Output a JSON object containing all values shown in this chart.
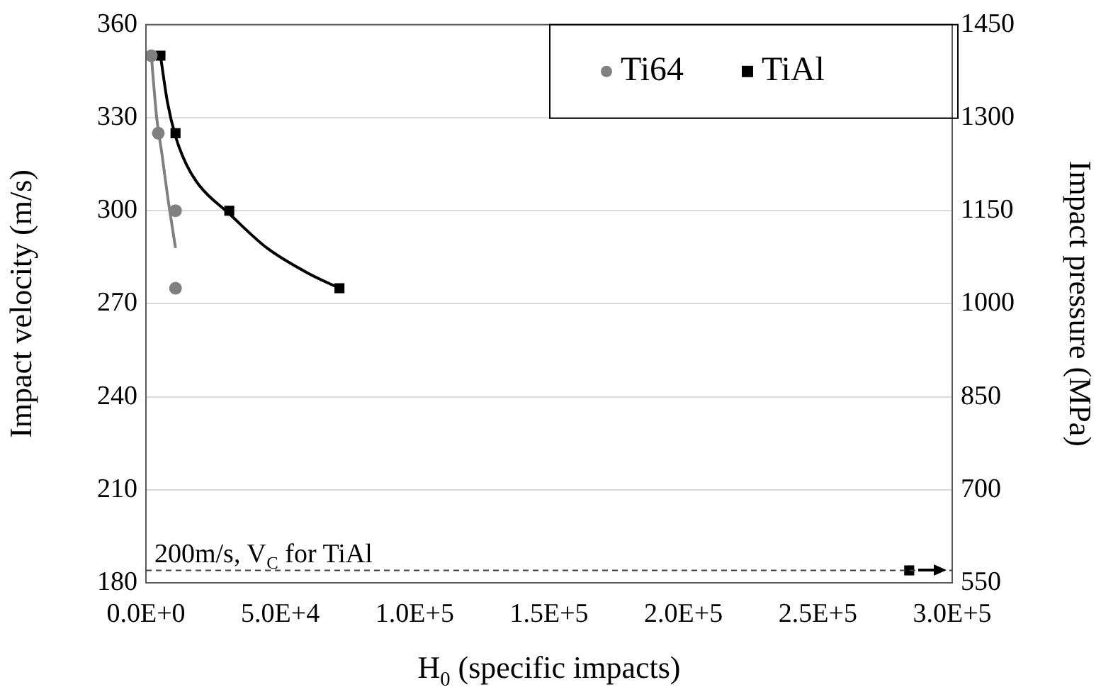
{
  "chart_data": {
    "type": "scatter",
    "xlabel": "H$_{0}$ (specific impacts)",
    "ylabel": "Impact velocity (m/s)",
    "y2label": "Impact pressure (MPa)",
    "xlim": [
      0,
      300000
    ],
    "xticks": [
      {
        "value": 0,
        "label": "0.0E+0"
      },
      {
        "value": 50000,
        "label": "5.0E+4"
      },
      {
        "value": 100000,
        "label": "1.0E+5"
      },
      {
        "value": 150000,
        "label": "1.5E+5"
      },
      {
        "value": 200000,
        "label": "2.0E+5"
      },
      {
        "value": 250000,
        "label": "2.5E+5"
      },
      {
        "value": 300000,
        "label": "3.0E+5"
      }
    ],
    "ylim": [
      180,
      360
    ],
    "yticks": [
      180,
      210,
      240,
      270,
      300,
      330,
      360
    ],
    "y2lim": [
      550,
      1450
    ],
    "y2ticks": [
      550,
      700,
      850,
      1000,
      1150,
      1300,
      1450
    ],
    "grid": "y",
    "legend": "top right",
    "series": [
      {
        "name": "Ti64",
        "color": "#808080",
        "marker": "circle",
        "x": [
          2000,
          4600,
          11000,
          11000
        ],
        "values": [
          350,
          325,
          300,
          275
        ]
      },
      {
        "name": "TiAl",
        "color": "#000000",
        "marker": "square",
        "x": [
          5400,
          11000,
          31000,
          72000,
          284000
        ],
        "values": [
          350,
          325,
          300,
          275,
          184
        ]
      },
      {
        "type": "line",
        "color": "#808080",
        "marker": "none",
        "x": [
          2000,
          4000,
          6000,
          8000,
          11000
        ],
        "values": [
          350,
          330,
          318,
          305,
          288
        ]
      },
      {
        "type": "line",
        "color": "#000000",
        "marker": "none",
        "x": [
          5400,
          8000,
          11000,
          15000,
          20000,
          31000,
          45000,
          60000,
          72000
        ],
        "values": [
          350,
          335,
          324,
          315,
          308,
          299,
          288,
          280,
          275
        ]
      }
    ],
    "ref_lines": [
      {
        "axis": "y",
        "value": 184,
        "label": "200m/s, V$_{C}$ for TiAl",
        "color": "#404040",
        "line_style": "dashed"
      }
    ]
  }
}
